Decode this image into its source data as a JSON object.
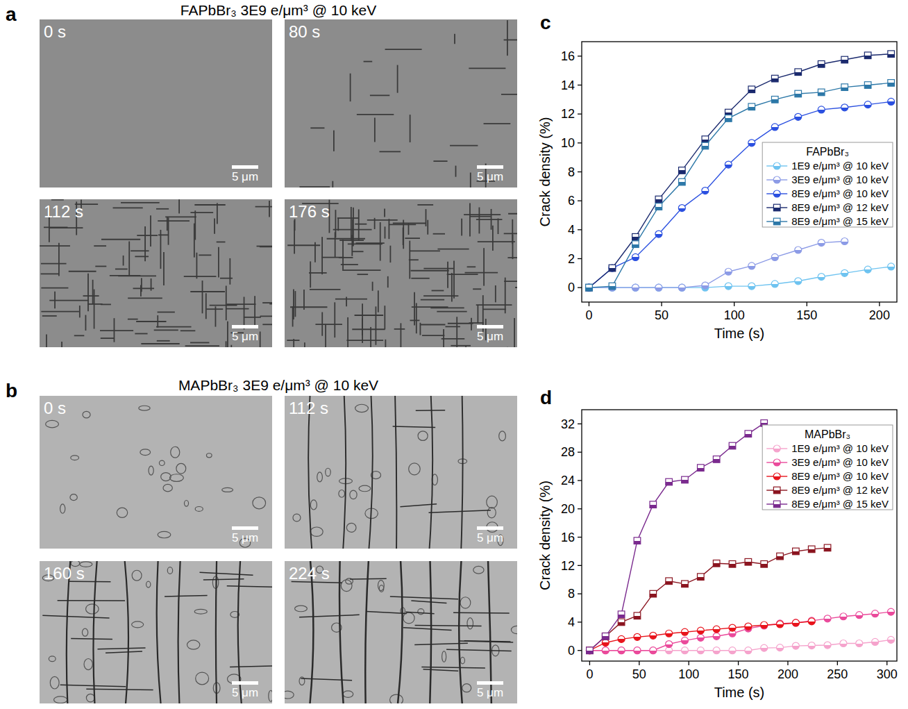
{
  "image_panels": [
    {
      "panel_label": "a",
      "title": "FAPbBr₃  3E9 e/μm³ @ 10 keV",
      "images": [
        {
          "time": "0 s",
          "scale_bar": "5 μm"
        },
        {
          "time": "80 s",
          "scale_bar": "5 μm"
        },
        {
          "time": "112 s",
          "scale_bar": "5 μm"
        },
        {
          "time": "176 s",
          "scale_bar": "5 μm"
        }
      ]
    },
    {
      "panel_label": "b",
      "title": "MAPbBr₃  3E9 e/μm³ @ 10 keV",
      "images": [
        {
          "time": "0 s",
          "scale_bar": "5 μm"
        },
        {
          "time": "112 s",
          "scale_bar": "5 μm"
        },
        {
          "time": "160 s",
          "scale_bar": "5 μm"
        },
        {
          "time": "224 s",
          "scale_bar": "5 μm"
        }
      ]
    }
  ],
  "chart_data": [
    {
      "panel_label": "c",
      "type": "line",
      "x_label": "Time (s)",
      "y_label": "Crack density (%)",
      "legend_title": "FAPbBr₃",
      "legend": "right",
      "x": [
        0,
        16,
        32,
        48,
        64,
        80,
        96,
        112,
        128,
        144,
        160,
        176,
        192,
        208
      ],
      "xlim": [
        -5,
        212
      ],
      "xticks": [
        0,
        50,
        100,
        150,
        200
      ],
      "ylim": [
        -1,
        17
      ],
      "yticks": [
        0,
        2,
        4,
        6,
        8,
        10,
        12,
        14,
        16
      ],
      "series": [
        {
          "name": "1E9 e/μm³ @ 10 keV",
          "color": "#6ec3f0",
          "marker": "circle",
          "values": [
            0,
            0,
            0,
            0,
            0,
            0,
            0.1,
            0.1,
            0.25,
            0.45,
            0.75,
            1.0,
            1.25,
            1.45
          ]
        },
        {
          "name": "3E9 e/μm³ @ 10 keV",
          "color": "#8c9be6",
          "marker": "circle",
          "values": [
            0,
            0,
            0,
            0,
            0,
            0.15,
            1.1,
            1.5,
            2.1,
            2.6,
            3.1,
            3.2,
            null,
            null
          ]
        },
        {
          "name": "8E9 e/μm³ @ 10 keV",
          "color": "#2b50e0",
          "marker": "circle",
          "values": [
            0,
            1.35,
            2.1,
            3.7,
            5.5,
            6.7,
            8.5,
            10.0,
            11.1,
            11.8,
            12.3,
            12.45,
            12.65,
            12.85
          ]
        },
        {
          "name": "8E9 e/μm³ @ 12 keV",
          "color": "#1b2a6e",
          "marker": "square",
          "values": [
            0,
            1.35,
            3.5,
            6.1,
            8.1,
            10.25,
            12.1,
            13.7,
            14.45,
            14.9,
            15.45,
            15.75,
            16.05,
            16.15
          ]
        },
        {
          "name": "8E9 e/μm³ @ 15 keV",
          "color": "#2d78a8",
          "marker": "square",
          "values": [
            0,
            0.1,
            3.0,
            5.6,
            7.3,
            9.8,
            11.7,
            12.5,
            13.0,
            13.4,
            13.5,
            13.85,
            14.0,
            14.15
          ]
        }
      ]
    },
    {
      "panel_label": "d",
      "type": "line",
      "x_label": "Time (s)",
      "y_label": "Crack density (%)",
      "legend_title": "MAPbBr₃",
      "legend": "right",
      "x": [
        0,
        16,
        32,
        48,
        64,
        80,
        96,
        112,
        128,
        144,
        160,
        176,
        192,
        208,
        224,
        240,
        256,
        272,
        288,
        304
      ],
      "xlim": [
        -8,
        310
      ],
      "xticks": [
        0,
        50,
        100,
        150,
        200,
        250,
        300
      ],
      "ylim": [
        -1.5,
        34
      ],
      "yticks": [
        0,
        4,
        8,
        12,
        16,
        20,
        24,
        28,
        32
      ],
      "series": [
        {
          "name": "1E9 e/μm³ @ 10 keV",
          "color": "#f5a3cc",
          "marker": "circle",
          "values": [
            0,
            0,
            0,
            0,
            0,
            0,
            0,
            0,
            0,
            0,
            0,
            0.35,
            0.4,
            0.65,
            0.7,
            0.75,
            1.0,
            1.0,
            1.2,
            1.5
          ]
        },
        {
          "name": "3E9 e/μm³ @ 10 keV",
          "color": "#ea4a9b",
          "marker": "circle",
          "values": [
            0,
            0,
            0,
            0,
            0,
            0.9,
            1.4,
            1.8,
            2.0,
            2.4,
            3.1,
            3.5,
            3.8,
            3.9,
            4.2,
            4.5,
            4.8,
            5.0,
            5.2,
            5.45
          ]
        },
        {
          "name": "8E9 e/μm³ @ 10 keV",
          "color": "#e8141c",
          "marker": "circle",
          "values": [
            0,
            1.1,
            1.6,
            1.9,
            2.1,
            2.4,
            2.6,
            2.8,
            3.0,
            3.2,
            3.4,
            3.6,
            3.7,
            3.9,
            4.1,
            null,
            null,
            null,
            null,
            null
          ]
        },
        {
          "name": "8E9 e/μm³ @ 12 keV",
          "color": "#8b1520",
          "marker": "square",
          "values": [
            0,
            2.0,
            4.0,
            4.9,
            8.0,
            9.8,
            9.4,
            10.4,
            12.3,
            12.2,
            12.5,
            12.2,
            13.3,
            14.0,
            14.3,
            14.5,
            null,
            null,
            null,
            null
          ]
        },
        {
          "name": "8E9 e/μm³ @ 15 keV",
          "color": "#7a2a8e",
          "marker": "square",
          "values": [
            0,
            2.0,
            5.1,
            15.5,
            20.6,
            23.8,
            24.1,
            25.8,
            27.0,
            28.9,
            30.6,
            32.1,
            null,
            null,
            null,
            null,
            null,
            null,
            null,
            null
          ]
        }
      ]
    }
  ]
}
